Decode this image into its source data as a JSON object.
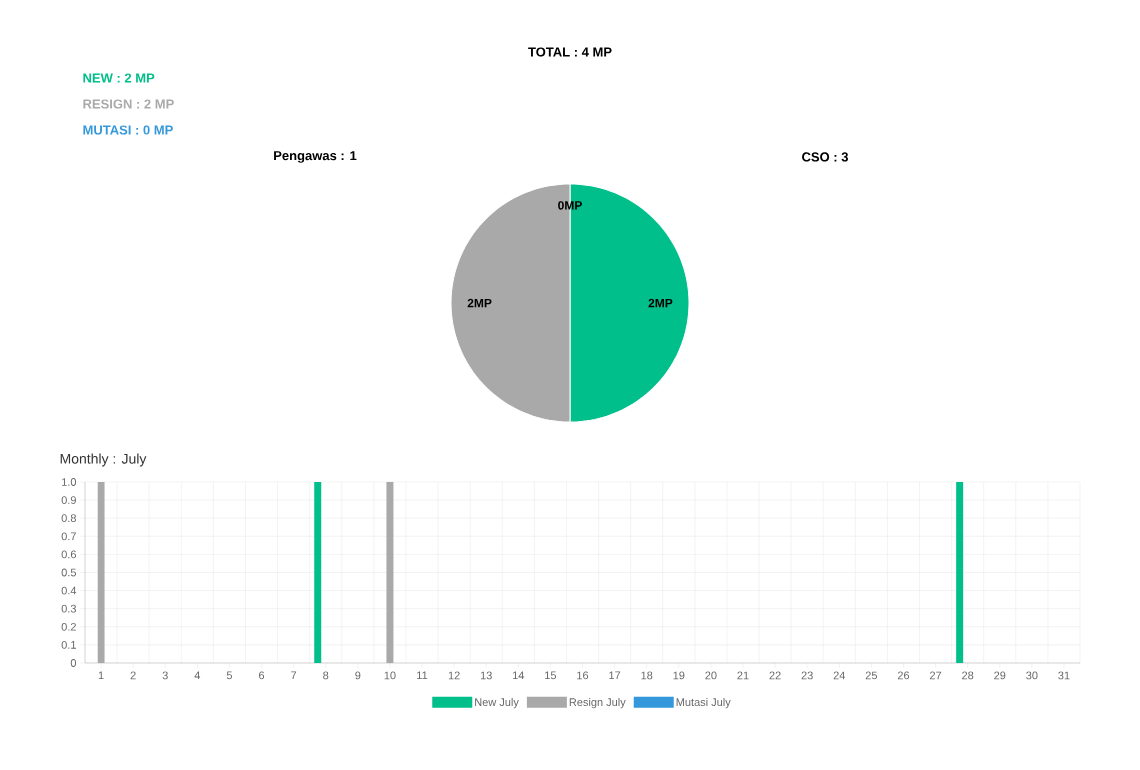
{
  "chart_data": [
    {
      "type": "pie",
      "title": "TOTAL : 4 MP",
      "categories": [
        null,
        null,
        null
      ],
      "values": [
        2,
        2,
        0
      ],
      "colors": [
        "#00bf8a",
        "#a9a9a9",
        "#3498db"
      ],
      "value_labels": [
        "2MP",
        "2MP",
        "0MP"
      ],
      "annotations": [
        "NEW : 2 MP",
        "RESIGN : 2 MP",
        "MUTASI : 0 MP",
        "Pengawas : 1",
        "CSO : 3"
      ]
    },
    {
      "type": "bar",
      "title": "Monthly : July",
      "categories": [
        "1",
        "2",
        "3",
        "4",
        "5",
        "6",
        "7",
        "8",
        "9",
        "10",
        "11",
        "12",
        "13",
        "14",
        "15",
        "16",
        "17",
        "18",
        "19",
        "20",
        "21",
        "22",
        "23",
        "24",
        "25",
        "26",
        "27",
        "28",
        "29",
        "30",
        "31"
      ],
      "series": [
        {
          "name": "New July",
          "color": "#00bf8a",
          "values": [
            0,
            0,
            0,
            0,
            0,
            0,
            0,
            1,
            0,
            0,
            0,
            0,
            0,
            0,
            0,
            0,
            0,
            0,
            0,
            0,
            0,
            0,
            0,
            0,
            0,
            0,
            0,
            1,
            0,
            0,
            0
          ]
        },
        {
          "name": "Resign July",
          "color": "#a9a9a9",
          "values": [
            1,
            0,
            0,
            0,
            0,
            0,
            0,
            0,
            0,
            1,
            0,
            0,
            0,
            0,
            0,
            0,
            0,
            0,
            0,
            0,
            0,
            0,
            0,
            0,
            0,
            0,
            0,
            0,
            0,
            0,
            0
          ]
        },
        {
          "name": "Mutasi July",
          "color": "#3498db",
          "values": [
            0,
            0,
            0,
            0,
            0,
            0,
            0,
            0,
            0,
            0,
            0,
            0,
            0,
            0,
            0,
            0,
            0,
            0,
            0,
            0,
            0,
            0,
            0,
            0,
            0,
            0,
            0,
            0,
            0,
            0,
            0
          ]
        }
      ],
      "ylim": [
        0,
        1
      ],
      "yticks": [
        0,
        0.1,
        0.2,
        0.3,
        0.4,
        0.5,
        0.6,
        0.7,
        0.8,
        0.9,
        {
          "value": 1,
          "label": "1.0"
        }
      ],
      "grid": true,
      "legend": "bottom"
    }
  ]
}
